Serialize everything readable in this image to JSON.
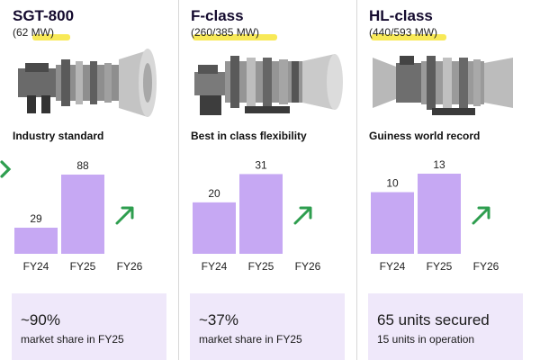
{
  "columns": [
    {
      "title": "SGT-800",
      "rating": "(62 MW)",
      "subtitle": "Industry standard",
      "box_big": "~90%",
      "box_small": "market share in FY25"
    },
    {
      "title": "F-class",
      "rating": "(260/385 MW)",
      "subtitle": "Best in class flexibility",
      "box_big": "~37%",
      "box_small": "market share in FY25"
    },
    {
      "title": "HL-class",
      "rating": "(440/593 MW)",
      "subtitle": "Guiness world record",
      "box_big": "65 units secured",
      "box_small": "15 units in operation"
    }
  ],
  "colors": {
    "bar": "#c6a8f3",
    "arrow": "#2e9e4f",
    "box": "#efe8fa",
    "highlight": "#f7e53a"
  },
  "icons": [
    "gas-turbine-icon",
    "up-right-arrow-icon",
    "green-chevron-icon"
  ],
  "chart_data": [
    {
      "type": "bar",
      "categories": [
        "FY24",
        "FY25",
        "FY26"
      ],
      "values": [
        29,
        88,
        null
      ],
      "data_labels": [
        "29",
        "88",
        ""
      ],
      "trend": "up",
      "ylim": [
        0,
        100
      ]
    },
    {
      "type": "bar",
      "categories": [
        "FY24",
        "FY25",
        "FY26"
      ],
      "values": [
        20,
        31,
        null
      ],
      "data_labels": [
        "20",
        "31",
        ""
      ],
      "trend": "up",
      "ylim": [
        0,
        35
      ]
    },
    {
      "type": "bar",
      "categories": [
        "FY24",
        "FY25",
        "FY26"
      ],
      "values": [
        10,
        13,
        null
      ],
      "data_labels": [
        "10",
        "13",
        ""
      ],
      "trend": "up",
      "ylim": [
        0,
        14.6
      ]
    }
  ]
}
